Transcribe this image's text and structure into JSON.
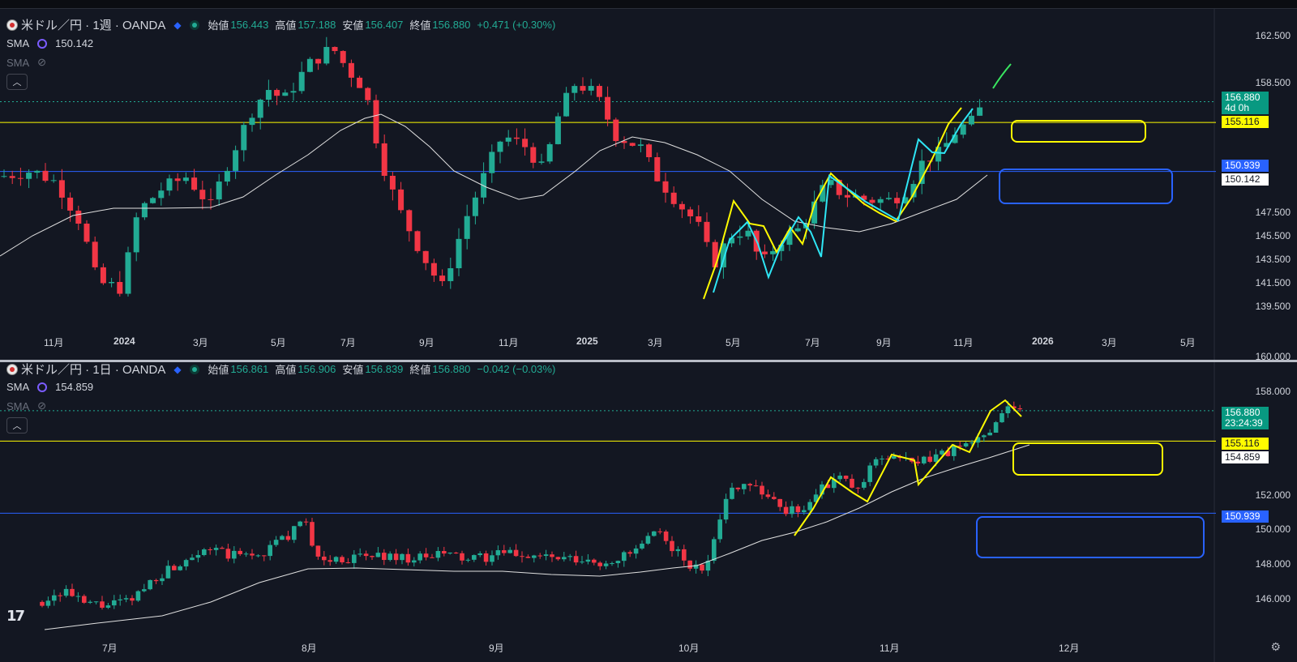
{
  "colors": {
    "up": "#22ab94",
    "down": "#f23645",
    "bg": "#131722",
    "yellow": "#fffb00",
    "blue": "#2962ff",
    "cyan": "#2ee6f5",
    "green": "#39e660",
    "sma": "#e0e0e0"
  },
  "top_pane": {
    "symbol": "米ドル／円 · 1週 · OANDA",
    "ohlc": [
      {
        "k": "始値",
        "v": "156.443"
      },
      {
        "k": "高値",
        "v": "157.188"
      },
      {
        "k": "安値",
        "v": "156.407"
      },
      {
        "k": "終値",
        "v": "156.880"
      }
    ],
    "change": "+0.471 (+0.30%)",
    "sma1_label": "SMA",
    "sma1_value": "150.142",
    "sma2_label": "SMA",
    "collapse": "︿",
    "price_labels": [
      "162.500",
      "158.500",
      "147.500",
      "145.500",
      "143.500",
      "141.500",
      "139.500"
    ],
    "time_labels": [
      "11月",
      "2024",
      "3月",
      "5月",
      "7月",
      "9月",
      "11月",
      "2025",
      "3月",
      "5月",
      "7月",
      "9月",
      "11月",
      "2026",
      "3月",
      "5月"
    ],
    "tags": {
      "last_price": "156.880",
      "countdown": "4d 0h",
      "yellow_level": "155.116",
      "blue_level": "150.939",
      "sma": "150.142"
    }
  },
  "bottom_pane": {
    "symbol": "米ドル／円 · 1日 · OANDA",
    "ohlc": [
      {
        "k": "始値",
        "v": "156.861"
      },
      {
        "k": "高値",
        "v": "156.906"
      },
      {
        "k": "安値",
        "v": "156.839"
      },
      {
        "k": "終値",
        "v": "156.880"
      }
    ],
    "change": "−0.042 (−0.03%)",
    "sma1_label": "SMA",
    "sma1_value": "154.859",
    "sma2_label": "SMA",
    "collapse": "︿",
    "price_labels": [
      "160.000",
      "158.000",
      "152.000",
      "150.000",
      "148.000",
      "146.000"
    ],
    "time_labels": [
      "7月",
      "8月",
      "9月",
      "10月",
      "11月",
      "12月"
    ],
    "tags": {
      "last_price": "156.880",
      "countdown": "23:24:39",
      "yellow_level": "155.116",
      "sma": "154.859",
      "blue_level": "150.939"
    }
  },
  "icons": {
    "logo": "tradingview-logo-icon",
    "settings": "gear-icon"
  },
  "logo_text": "17",
  "settings_glyph": "⚙"
}
